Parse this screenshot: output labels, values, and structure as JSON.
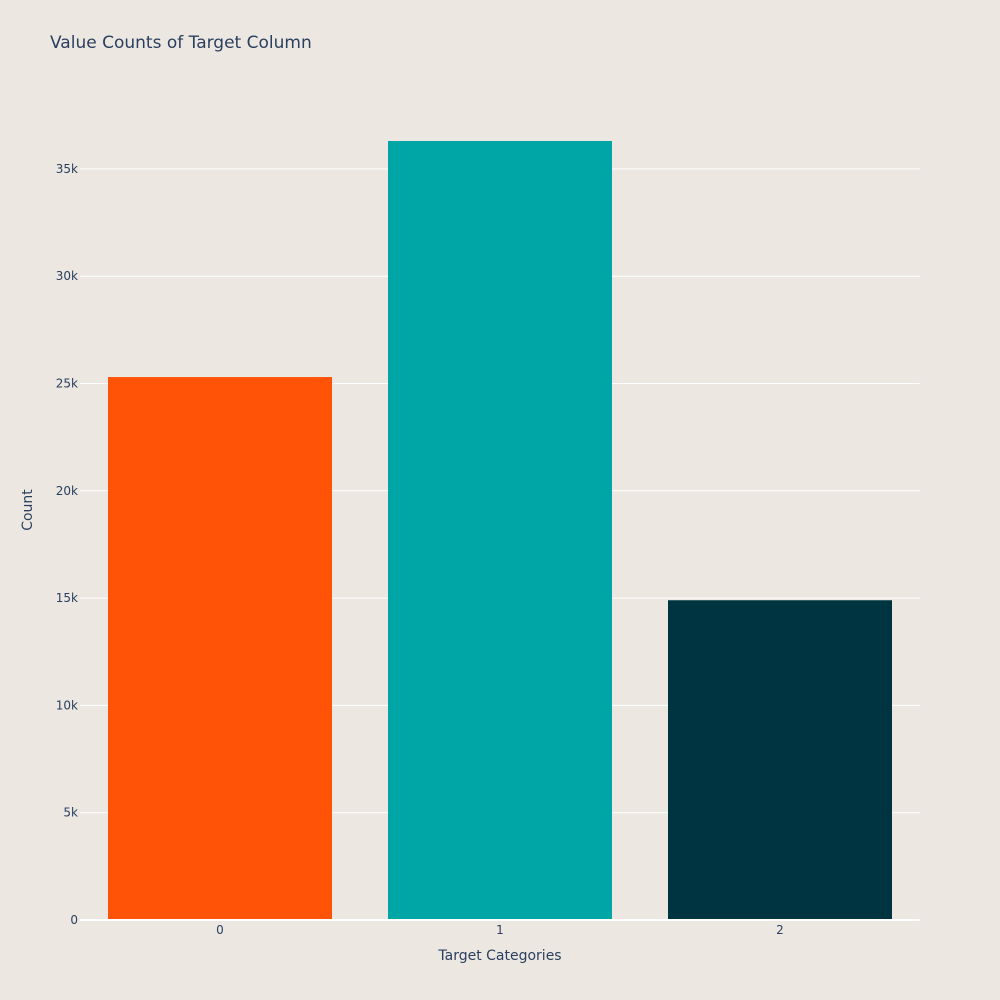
{
  "chart_data": {
    "type": "bar",
    "title": "Value Counts of Target Column",
    "xlabel": "Target Categories",
    "ylabel": "Count",
    "categories": [
      "0",
      "1",
      "2"
    ],
    "values": [
      25300,
      36300,
      14900
    ],
    "bar_colors": [
      "#ff5308",
      "#00a5a6",
      "#003440"
    ],
    "ylim": [
      0,
      38210
    ],
    "y_ticks": [
      0,
      5000,
      10000,
      15000,
      20000,
      25000,
      30000,
      35000
    ],
    "y_tick_labels": [
      "0",
      "5k",
      "10k",
      "15k",
      "20k",
      "25k",
      "30k",
      "35k"
    ],
    "grid": true,
    "legend": "none",
    "background": "#ece8e1",
    "grid_color": "#ffffff",
    "text_color": "#2a3f5f"
  }
}
